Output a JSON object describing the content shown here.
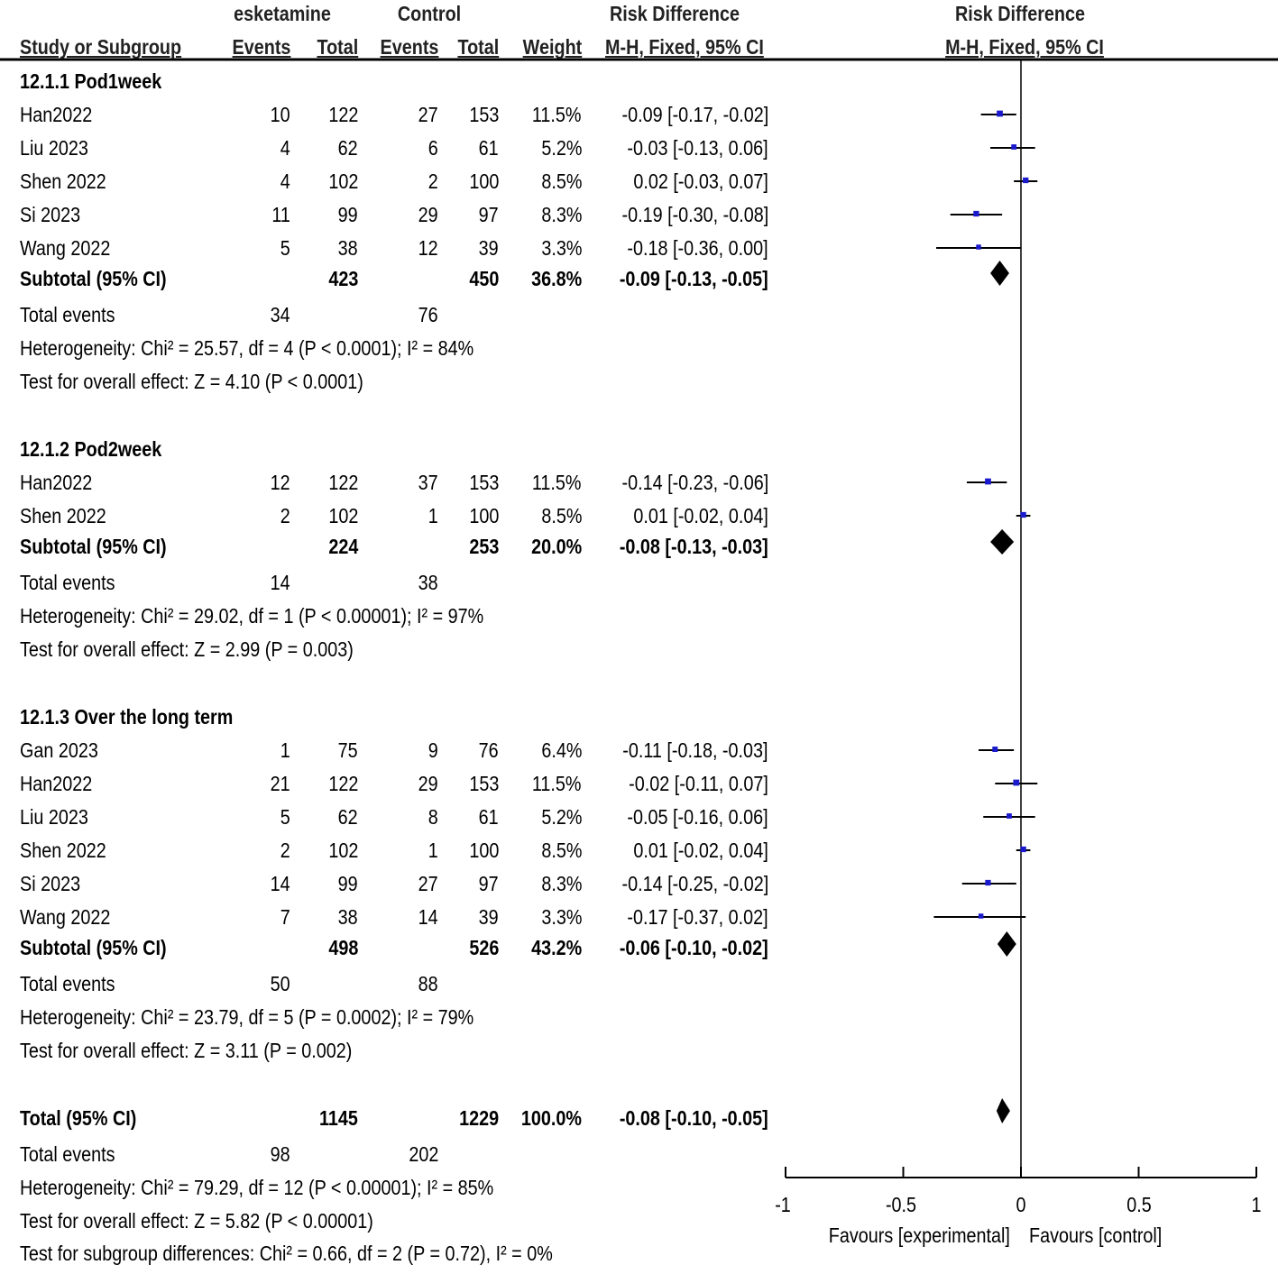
{
  "header": {
    "group_exp": "esketamine",
    "group_ctrl": "Control",
    "effect_title_table": "Risk Difference",
    "effect_title_plot": "Risk Difference",
    "col_study": "Study or Subgroup",
    "col_events_exp": "Events",
    "col_total_exp": "Total",
    "col_events_ctrl": "Events",
    "col_total_ctrl": "Total",
    "col_weight": "Weight",
    "col_method_table": "M-H, Fixed, 95% CI",
    "col_method_plot": "M-H, Fixed, 95% CI"
  },
  "subgroups": [
    {
      "title": "12.1.1 Pod1week",
      "studies": [
        {
          "name": "Han2022",
          "e1": "10",
          "n1": "122",
          "e2": "27",
          "n2": "153",
          "weight": "11.5%",
          "ci": "-0.09 [-0.17, -0.02]"
        },
        {
          "name": "Liu 2023",
          "e1": "4",
          "n1": "62",
          "e2": "6",
          "n2": "61",
          "weight": "5.2%",
          "ci": "-0.03 [-0.13, 0.06]"
        },
        {
          "name": "Shen 2022",
          "e1": "4",
          "n1": "102",
          "e2": "2",
          "n2": "100",
          "weight": "8.5%",
          "ci": "0.02 [-0.03, 0.07]"
        },
        {
          "name": "Si 2023",
          "e1": "11",
          "n1": "99",
          "e2": "29",
          "n2": "97",
          "weight": "8.3%",
          "ci": "-0.19 [-0.30, -0.08]"
        },
        {
          "name": "Wang 2022",
          "e1": "5",
          "n1": "38",
          "e2": "12",
          "n2": "39",
          "weight": "3.3%",
          "ci": "-0.18 [-0.36, 0.00]"
        }
      ],
      "subtotal": {
        "label": "Subtotal (95% CI)",
        "n1": "423",
        "n2": "450",
        "weight": "36.8%",
        "ci": "-0.09 [-0.13, -0.05]"
      },
      "total_events": {
        "label": "Total events",
        "e1": "34",
        "e2": "76"
      },
      "heterogeneity": "Heterogeneity: Chi² = 25.57, df = 4 (P < 0.0001); I² = 84%",
      "overall": "Test for overall effect: Z = 4.10 (P < 0.0001)"
    },
    {
      "title": "12.1.2 Pod2week",
      "studies": [
        {
          "name": "Han2022",
          "e1": "12",
          "n1": "122",
          "e2": "37",
          "n2": "153",
          "weight": "11.5%",
          "ci": "-0.14 [-0.23, -0.06]"
        },
        {
          "name": "Shen 2022",
          "e1": "2",
          "n1": "102",
          "e2": "1",
          "n2": "100",
          "weight": "8.5%",
          "ci": "0.01 [-0.02, 0.04]"
        }
      ],
      "subtotal": {
        "label": "Subtotal (95% CI)",
        "n1": "224",
        "n2": "253",
        "weight": "20.0%",
        "ci": "-0.08 [-0.13, -0.03]"
      },
      "total_events": {
        "label": "Total events",
        "e1": "14",
        "e2": "38"
      },
      "heterogeneity": "Heterogeneity: Chi² = 29.02, df = 1 (P < 0.00001); I² = 97%",
      "overall": "Test for overall effect: Z = 2.99 (P = 0.003)"
    },
    {
      "title": "12.1.3 Over the long term",
      "studies": [
        {
          "name": "Gan 2023",
          "e1": "1",
          "n1": "75",
          "e2": "9",
          "n2": "76",
          "weight": "6.4%",
          "ci": "-0.11 [-0.18, -0.03]"
        },
        {
          "name": "Han2022",
          "e1": "21",
          "n1": "122",
          "e2": "29",
          "n2": "153",
          "weight": "11.5%",
          "ci": "-0.02 [-0.11, 0.07]"
        },
        {
          "name": "Liu 2023",
          "e1": "5",
          "n1": "62",
          "e2": "8",
          "n2": "61",
          "weight": "5.2%",
          "ci": "-0.05 [-0.16, 0.06]"
        },
        {
          "name": "Shen 2022",
          "e1": "2",
          "n1": "102",
          "e2": "1",
          "n2": "100",
          "weight": "8.5%",
          "ci": "0.01 [-0.02, 0.04]"
        },
        {
          "name": "Si 2023",
          "e1": "14",
          "n1": "99",
          "e2": "27",
          "n2": "97",
          "weight": "8.3%",
          "ci": "-0.14 [-0.25, -0.02]"
        },
        {
          "name": "Wang 2022",
          "e1": "7",
          "n1": "38",
          "e2": "14",
          "n2": "39",
          "weight": "3.3%",
          "ci": "-0.17 [-0.37, 0.02]"
        }
      ],
      "subtotal": {
        "label": "Subtotal (95% CI)",
        "n1": "498",
        "n2": "526",
        "weight": "43.2%",
        "ci": "-0.06 [-0.10, -0.02]"
      },
      "total_events": {
        "label": "Total events",
        "e1": "50",
        "e2": "88"
      },
      "heterogeneity": "Heterogeneity: Chi² = 23.79, df = 5 (P = 0.0002); I² = 79%",
      "overall": "Test for overall effect: Z = 3.11 (P = 0.002)"
    }
  ],
  "total": {
    "label": "Total (95% CI)",
    "n1": "1145",
    "n2": "1229",
    "weight": "100.0%",
    "ci": "-0.08 [-0.10, -0.05]"
  },
  "total_events": {
    "label": "Total events",
    "e1": "98",
    "e2": "202"
  },
  "total_heterogeneity": "Heterogeneity: Chi² = 79.29, df = 12 (P < 0.00001); I² = 85%",
  "total_overall": "Test for overall effect: Z = 5.82 (P < 0.00001)",
  "subgroup_diff": "Test for subgroup differences: Chi² = 0.66, df = 2 (P = 0.72), I² = 0%",
  "axis": {
    "ticks": [
      -1,
      -0.5,
      0,
      0.5,
      1
    ],
    "tick_labels": [
      "-1",
      "-0.5",
      "0",
      "0.5",
      "1"
    ],
    "favours_left": "Favours [experimental]",
    "favours_right": "Favours [control]"
  },
  "colors": {
    "square": "#1a1acc",
    "line": "#000000",
    "diamond": "#000000"
  },
  "chart_data": {
    "type": "forest",
    "title": "Risk Difference, M-H, Fixed, 95% CI",
    "xlim": [
      -1,
      1
    ],
    "xlabel_left": "Favours [experimental]",
    "xlabel_right": "Favours [control]",
    "series": [
      {
        "name": "12.1.1 Pod1week",
        "points": [
          {
            "study": "Han2022",
            "est": -0.09,
            "lo": -0.17,
            "hi": -0.02,
            "weight": 11.5
          },
          {
            "study": "Liu 2023",
            "est": -0.03,
            "lo": -0.13,
            "hi": 0.06,
            "weight": 5.2
          },
          {
            "study": "Shen 2022",
            "est": 0.02,
            "lo": -0.03,
            "hi": 0.07,
            "weight": 8.5
          },
          {
            "study": "Si 2023",
            "est": -0.19,
            "lo": -0.3,
            "hi": -0.08,
            "weight": 8.3
          },
          {
            "study": "Wang 2022",
            "est": -0.18,
            "lo": -0.36,
            "hi": 0.0,
            "weight": 3.3
          }
        ],
        "subtotal": {
          "est": -0.09,
          "lo": -0.13,
          "hi": -0.05
        }
      },
      {
        "name": "12.1.2 Pod2week",
        "points": [
          {
            "study": "Han2022",
            "est": -0.14,
            "lo": -0.23,
            "hi": -0.06,
            "weight": 11.5
          },
          {
            "study": "Shen 2022",
            "est": 0.01,
            "lo": -0.02,
            "hi": 0.04,
            "weight": 8.5
          }
        ],
        "subtotal": {
          "est": -0.08,
          "lo": -0.13,
          "hi": -0.03
        }
      },
      {
        "name": "12.1.3 Over the long term",
        "points": [
          {
            "study": "Gan 2023",
            "est": -0.11,
            "lo": -0.18,
            "hi": -0.03,
            "weight": 6.4
          },
          {
            "study": "Han2022",
            "est": -0.02,
            "lo": -0.11,
            "hi": 0.07,
            "weight": 11.5
          },
          {
            "study": "Liu 2023",
            "est": -0.05,
            "lo": -0.16,
            "hi": 0.06,
            "weight": 5.2
          },
          {
            "study": "Shen 2022",
            "est": 0.01,
            "lo": -0.02,
            "hi": 0.04,
            "weight": 8.5
          },
          {
            "study": "Si 2023",
            "est": -0.14,
            "lo": -0.25,
            "hi": -0.02,
            "weight": 8.3
          },
          {
            "study": "Wang 2022",
            "est": -0.17,
            "lo": -0.37,
            "hi": 0.02,
            "weight": 3.3
          }
        ],
        "subtotal": {
          "est": -0.06,
          "lo": -0.1,
          "hi": -0.02
        }
      }
    ],
    "overall": {
      "est": -0.08,
      "lo": -0.1,
      "hi": -0.05
    }
  }
}
